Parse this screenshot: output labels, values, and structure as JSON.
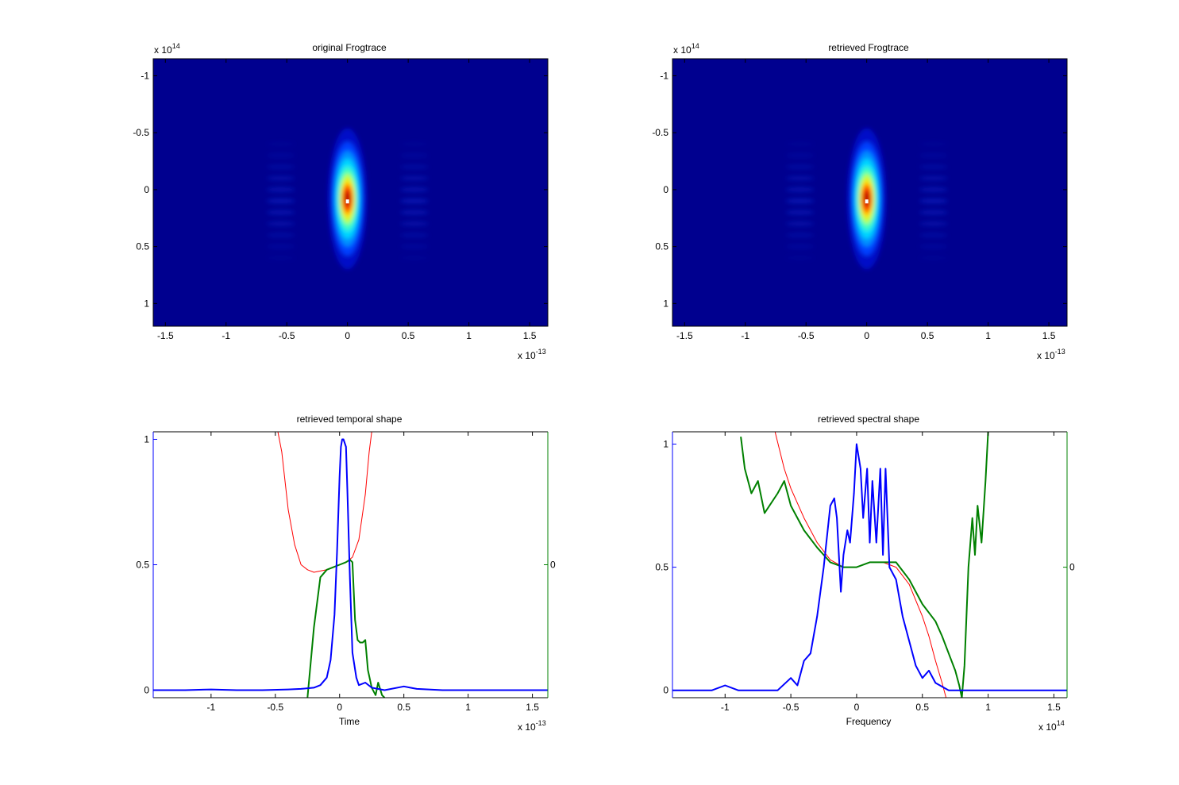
{
  "chart_data": [
    {
      "id": "original",
      "type": "heatmap",
      "title": "original Frogtrace",
      "xlim": [
        -1.6,
        1.65
      ],
      "ylim": [
        -1.15,
        1.2
      ],
      "y_reversed": true,
      "xticks": [
        -1.5,
        -1,
        -0.5,
        0,
        0.5,
        1,
        1.5
      ],
      "xtick_labels": [
        "-1.5",
        "-1",
        "-0.5",
        "0",
        "0.5",
        "1",
        "1.5"
      ],
      "yticks": [
        -1,
        -0.5,
        0,
        0.5,
        1
      ],
      "ytick_labels": [
        "-1",
        "-0.5",
        "0",
        "0.5",
        "1"
      ],
      "x_exponent": {
        "base": "x 10",
        "power": "-13"
      },
      "y_exponent": {
        "base": "x 10",
        "power": "14"
      },
      "peak": {
        "x": 0.0,
        "y": 0.1
      },
      "colormap": "jet"
    },
    {
      "id": "retrieved",
      "type": "heatmap",
      "title": "retrieved Frogtrace",
      "xlim": [
        -1.6,
        1.65
      ],
      "ylim": [
        -1.15,
        1.2
      ],
      "y_reversed": true,
      "xticks": [
        -1.5,
        -1,
        -0.5,
        0,
        0.5,
        1,
        1.5
      ],
      "xtick_labels": [
        "-1.5",
        "-1",
        "-0.5",
        "0",
        "0.5",
        "1",
        "1.5"
      ],
      "yticks": [
        -1,
        -0.5,
        0,
        0.5,
        1
      ],
      "ytick_labels": [
        "-1",
        "-0.5",
        "0",
        "0.5",
        "1"
      ],
      "x_exponent": {
        "base": "x 10",
        "power": "-13"
      },
      "y_exponent": {
        "base": "x 10",
        "power": "14"
      },
      "peak": {
        "x": 0.0,
        "y": 0.1
      },
      "colormap": "jet"
    },
    {
      "id": "temporal",
      "type": "line",
      "title": "retrieved temporal shape",
      "xlabel": "Time",
      "xlim": [
        -1.45,
        1.62
      ],
      "ylim": [
        -0.03,
        1.03
      ],
      "xticks": [
        -1,
        -0.5,
        0,
        0.5,
        1,
        1.5
      ],
      "xtick_labels": [
        "-1",
        "-0.5",
        "0",
        "0.5",
        "1",
        "1.5"
      ],
      "yticks": [
        0,
        0.5,
        1
      ],
      "ytick_labels": [
        "0",
        "0.5",
        "1"
      ],
      "right_ytick_label": "0",
      "x_exponent": {
        "base": "x 10",
        "power": "-13"
      },
      "colors": {
        "intensity": "#0000ff",
        "phase": "#008000",
        "fit": "#ff0000"
      },
      "series": [
        {
          "role": "intensity",
          "x": [
            -1.45,
            -1.2,
            -1.0,
            -0.8,
            -0.6,
            -0.4,
            -0.3,
            -0.2,
            -0.15,
            -0.1,
            -0.07,
            -0.04,
            -0.02,
            0.0,
            0.01,
            0.02,
            0.03,
            0.05,
            0.06,
            0.08,
            0.1,
            0.13,
            0.15,
            0.2,
            0.25,
            0.35,
            0.5,
            0.55,
            0.6,
            0.8,
            1.0,
            1.2,
            1.4,
            1.62
          ],
          "y": [
            0.0,
            0.0,
            0.003,
            0.0,
            0.0,
            0.003,
            0.005,
            0.01,
            0.02,
            0.05,
            0.12,
            0.3,
            0.55,
            0.85,
            0.97,
            1.0,
            1.0,
            0.97,
            0.8,
            0.45,
            0.15,
            0.05,
            0.02,
            0.03,
            0.01,
            0.0,
            0.015,
            0.01,
            0.005,
            0.0,
            0.0,
            0.0,
            0.0,
            0.0
          ]
        },
        {
          "role": "phase",
          "x": [
            -0.25,
            -0.2,
            -0.15,
            -0.1,
            -0.05,
            0.0,
            0.05,
            0.08,
            0.1,
            0.12,
            0.14,
            0.16,
            0.18,
            0.2,
            0.22,
            0.25,
            0.28,
            0.3,
            0.33,
            0.35
          ],
          "y": [
            -0.03,
            0.25,
            0.45,
            0.48,
            0.49,
            0.5,
            0.51,
            0.52,
            0.51,
            0.28,
            0.2,
            0.19,
            0.19,
            0.2,
            0.08,
            0.01,
            -0.02,
            0.03,
            -0.02,
            -0.03
          ]
        },
        {
          "role": "fit",
          "x": [
            -0.48,
            -0.45,
            -0.4,
            -0.35,
            -0.3,
            -0.25,
            -0.2,
            -0.15,
            -0.1,
            -0.05,
            0.0,
            0.05,
            0.1,
            0.15,
            0.2,
            0.23,
            0.25
          ],
          "y": [
            1.03,
            0.95,
            0.72,
            0.58,
            0.5,
            0.48,
            0.47,
            0.475,
            0.48,
            0.49,
            0.5,
            0.51,
            0.53,
            0.6,
            0.78,
            0.95,
            1.03
          ]
        }
      ]
    },
    {
      "id": "spectral",
      "type": "line",
      "title": "retrieved spectral shape",
      "xlabel": "Frequency",
      "xlim": [
        -1.4,
        1.6
      ],
      "ylim": [
        -0.03,
        1.05
      ],
      "xticks": [
        -1,
        -0.5,
        0,
        0.5,
        1,
        1.5
      ],
      "xtick_labels": [
        "-1",
        "-0.5",
        "0",
        "0.5",
        "1",
        "1.5"
      ],
      "yticks": [
        0,
        0.5,
        1
      ],
      "ytick_labels": [
        "0",
        "0.5",
        "1"
      ],
      "right_ytick_label": "0",
      "x_exponent": {
        "base": "x 10",
        "power": "14"
      },
      "colors": {
        "intensity": "#0000ff",
        "phase": "#008000",
        "fit": "#ff0000"
      },
      "series": [
        {
          "role": "intensity",
          "x": [
            -1.4,
            -1.1,
            -1.0,
            -0.9,
            -0.6,
            -0.5,
            -0.45,
            -0.4,
            -0.35,
            -0.3,
            -0.25,
            -0.2,
            -0.17,
            -0.15,
            -0.12,
            -0.1,
            -0.07,
            -0.05,
            -0.02,
            0.0,
            0.03,
            0.05,
            0.08,
            0.1,
            0.12,
            0.15,
            0.18,
            0.2,
            0.22,
            0.25,
            0.3,
            0.35,
            0.4,
            0.45,
            0.5,
            0.55,
            0.6,
            0.7,
            0.8,
            1.0,
            1.3,
            1.6
          ],
          "y": [
            0.0,
            0.0,
            0.02,
            0.0,
            0.0,
            0.05,
            0.02,
            0.12,
            0.15,
            0.3,
            0.5,
            0.75,
            0.78,
            0.7,
            0.4,
            0.55,
            0.65,
            0.6,
            0.8,
            1.0,
            0.9,
            0.7,
            0.9,
            0.6,
            0.85,
            0.6,
            0.9,
            0.55,
            0.9,
            0.5,
            0.45,
            0.3,
            0.2,
            0.1,
            0.05,
            0.08,
            0.03,
            0.0,
            0.0,
            0.0,
            0.0,
            0.0
          ]
        },
        {
          "role": "phase",
          "x": [
            -0.88,
            -0.85,
            -0.8,
            -0.75,
            -0.7,
            -0.6,
            -0.55,
            -0.5,
            -0.45,
            -0.4,
            -0.3,
            -0.2,
            -0.1,
            0.0,
            0.1,
            0.2,
            0.3,
            0.4,
            0.5,
            0.6,
            0.65,
            0.7,
            0.75,
            0.78,
            0.8,
            0.82,
            0.85,
            0.88,
            0.9,
            0.92,
            0.95,
            0.98,
            1.0
          ],
          "y": [
            1.03,
            0.9,
            0.8,
            0.85,
            0.72,
            0.8,
            0.85,
            0.75,
            0.7,
            0.65,
            0.58,
            0.52,
            0.5,
            0.5,
            0.52,
            0.52,
            0.52,
            0.45,
            0.35,
            0.28,
            0.22,
            0.15,
            0.08,
            0.02,
            -0.03,
            0.1,
            0.5,
            0.7,
            0.55,
            0.75,
            0.6,
            0.85,
            1.05
          ]
        },
        {
          "role": "fit",
          "x": [
            -0.62,
            -0.55,
            -0.5,
            -0.4,
            -0.3,
            -0.2,
            -0.1,
            0.0,
            0.1,
            0.2,
            0.3,
            0.4,
            0.5,
            0.55,
            0.6,
            0.65,
            0.68
          ],
          "y": [
            1.05,
            0.9,
            0.82,
            0.7,
            0.6,
            0.53,
            0.5,
            0.5,
            0.52,
            0.52,
            0.5,
            0.43,
            0.3,
            0.22,
            0.12,
            0.03,
            -0.03
          ]
        }
      ]
    }
  ]
}
